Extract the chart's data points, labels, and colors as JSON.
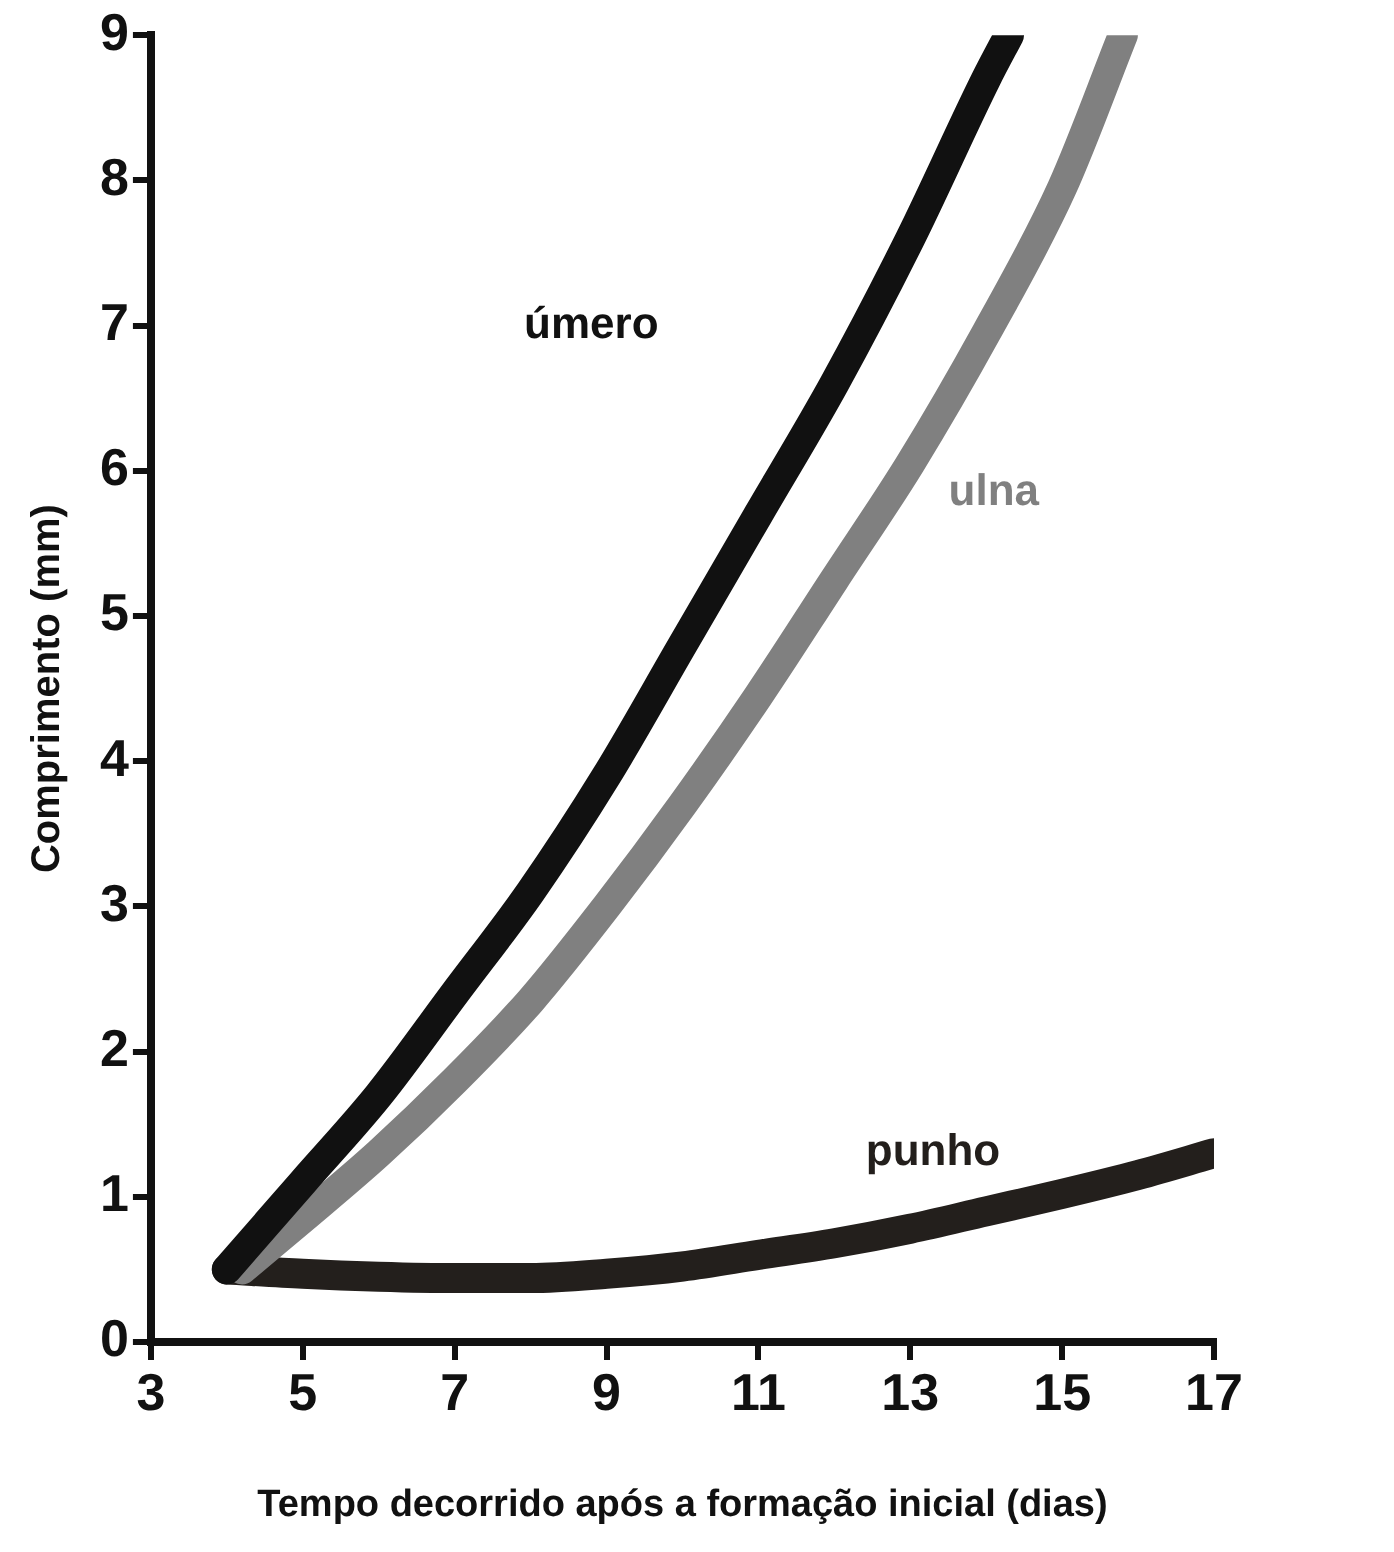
{
  "chart_data": {
    "type": "line",
    "xlabel": "Tempo decorrido após a formação inicial (dias)",
    "ylabel": "Comprimento (mm)",
    "xlim": [
      3,
      17
    ],
    "xticks": [
      3,
      5,
      7,
      9,
      11,
      13,
      15,
      17
    ],
    "ylim": [
      0,
      9
    ],
    "yticks": [
      0,
      1,
      2,
      3,
      4,
      5,
      6,
      7,
      8,
      9
    ],
    "marker": "none",
    "line_style": "solid",
    "legend": false,
    "series": [
      {
        "name": "úmero",
        "color": "#111111",
        "x": [
          4,
          5,
          6,
          7,
          8,
          9,
          10,
          11,
          12,
          13,
          14,
          14.3
        ],
        "values": [
          0.5,
          1.1,
          1.7,
          2.4,
          3.1,
          3.9,
          4.8,
          5.7,
          6.6,
          7.6,
          8.7,
          9
        ]
      },
      {
        "name": "ulna",
        "color": "#808080",
        "x": [
          4.2,
          5,
          6,
          7,
          8,
          9,
          10,
          11,
          12,
          13,
          14,
          15,
          15.8
        ],
        "values": [
          0.5,
          0.85,
          1.3,
          1.8,
          2.35,
          3.0,
          3.7,
          4.45,
          5.25,
          6.05,
          6.95,
          7.95,
          9
        ]
      },
      {
        "name": "punho",
        "color": "#231f1c",
        "x": [
          4,
          5,
          6,
          7,
          8,
          9,
          10,
          11,
          12,
          13,
          14,
          15,
          16,
          17
        ],
        "values": [
          0.5,
          0.47,
          0.45,
          0.44,
          0.44,
          0.47,
          0.52,
          0.6,
          0.68,
          0.78,
          0.9,
          1.02,
          1.15,
          1.3
        ]
      }
    ]
  }
}
